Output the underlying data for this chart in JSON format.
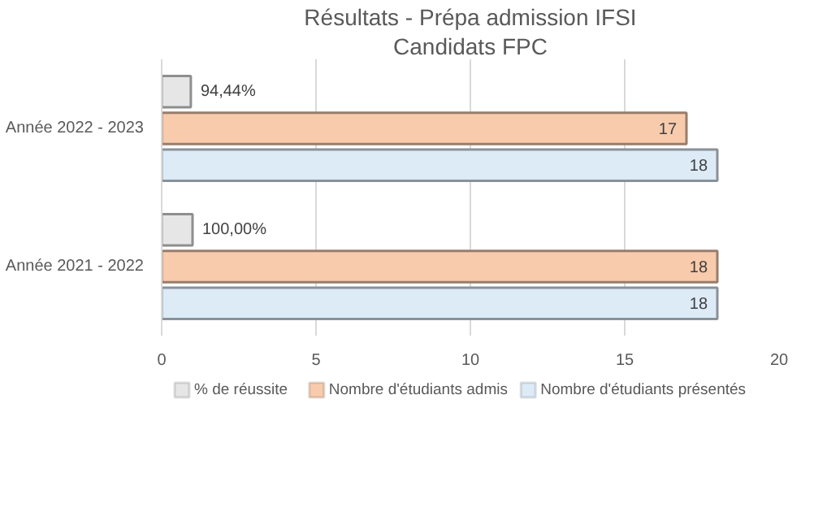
{
  "chart_data": {
    "type": "bar",
    "orientation": "horizontal",
    "title": "Résultats - Prépa admission IFSI",
    "subtitle": "Candidats FPC",
    "categories": [
      "Année 2022 - 2023",
      "Année 2021 - 2022"
    ],
    "series": [
      {
        "name": "% de réussite",
        "color": "#e7e6e6",
        "values": [
          0.9444,
          1.0
        ],
        "value_labels": [
          "94,44%",
          "100,00%"
        ]
      },
      {
        "name": "Nombre d'étudiants admis",
        "color": "#f8cbad",
        "values": [
          17,
          18
        ],
        "value_labels": [
          "17",
          "18"
        ]
      },
      {
        "name": "Nombre d'étudiants présentés",
        "color": "#ddebf7",
        "values": [
          18,
          18
        ],
        "value_labels": [
          "18",
          "18"
        ]
      }
    ],
    "xlim": [
      0,
      20
    ],
    "xticks": [
      0,
      5,
      10,
      15,
      20
    ],
    "grid": "x",
    "legend": "bottom"
  }
}
